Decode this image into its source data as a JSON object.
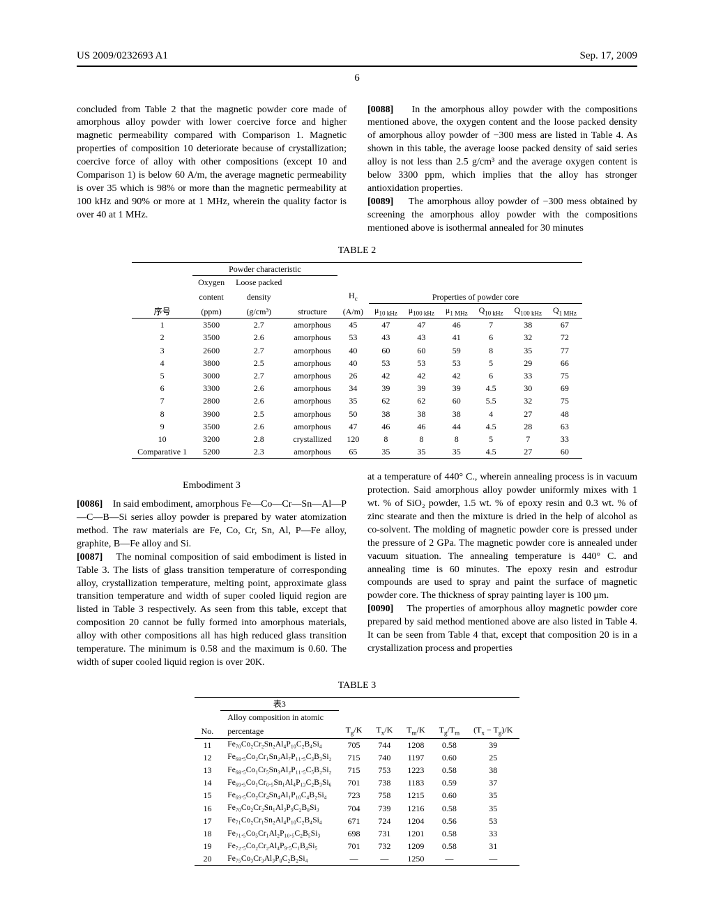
{
  "header": {
    "pub_no": "US 2009/0232693 A1",
    "date": "Sep. 17, 2009",
    "page": "6"
  },
  "top_left_para": "concluded from Table 2 that the magnetic powder core made of amorphous alloy powder with lower coercive force and higher magnetic permeability compared with Comparison 1. Magnetic properties of composition 10 deteriorate because of crystallization; coercive force of alloy with other compositions (except 10 and Comparison 1) is below 60 A/m, the average magnetic permeability is over 35 which is 98% or more than the magnetic permeability at 100 kHz and 90% or more at 1 MHz, wherein the quality factor is over 40 at 1 MHz.",
  "top_right_p1_label": "[0088]",
  "top_right_p1": "In the amorphous alloy powder with the compositions mentioned above, the oxygen content and the loose packed density of amorphous alloy powder of −300 mess are listed in Table 4. As shown in this table, the average loose packed density of said series alloy is not less than 2.5 g/cm³ and the average oxygen content is below 3300 ppm, which implies that the alloy has stronger antioxidation properties.",
  "top_right_p2_label": "[0089]",
  "top_right_p2": "The amorphous alloy powder of −300 mess obtained by screening the amorphous alloy powder with the compositions mentioned above is isothermal annealed for 30 minutes",
  "table2": {
    "caption": "TABLE 2",
    "group1": "Powder characteristic",
    "group2": "Properties of powder core",
    "col_no": "序号",
    "col_oxy1": "Oxygen",
    "col_oxy2": "content",
    "col_oxy3": "(ppm)",
    "col_lpd1": "Loose packed",
    "col_lpd2": "density",
    "col_lpd3": "(g/cm³)",
    "col_struct": "structure",
    "col_hc1": "H",
    "col_hc2": "(A/m)",
    "col_mu10": "μ",
    "col_mu100": "μ",
    "col_mu1m": "μ",
    "col_q10": "Q",
    "col_q100": "Q",
    "col_q1m": "Q",
    "sub_10k": "10 kHz",
    "sub_100k": "100 kHz",
    "sub_1m": "1 MHz",
    "sub_c": "c",
    "rows": [
      [
        "1",
        "3500",
        "2.7",
        "amorphous",
        "45",
        "47",
        "47",
        "46",
        "7",
        "38",
        "67"
      ],
      [
        "2",
        "3500",
        "2.6",
        "amorphous",
        "53",
        "43",
        "43",
        "41",
        "6",
        "32",
        "72"
      ],
      [
        "3",
        "2600",
        "2.7",
        "amorphous",
        "40",
        "60",
        "60",
        "59",
        "8",
        "35",
        "77"
      ],
      [
        "4",
        "3800",
        "2.5",
        "amorphous",
        "40",
        "53",
        "53",
        "53",
        "5",
        "29",
        "66"
      ],
      [
        "5",
        "3000",
        "2.7",
        "amorphous",
        "26",
        "42",
        "42",
        "42",
        "6",
        "33",
        "75"
      ],
      [
        "6",
        "3300",
        "2.6",
        "amorphous",
        "34",
        "39",
        "39",
        "39",
        "4.5",
        "30",
        "69"
      ],
      [
        "7",
        "2800",
        "2.6",
        "amorphous",
        "35",
        "62",
        "62",
        "60",
        "5.5",
        "32",
        "75"
      ],
      [
        "8",
        "3900",
        "2.5",
        "amorphous",
        "50",
        "38",
        "38",
        "38",
        "4",
        "27",
        "48"
      ],
      [
        "9",
        "3500",
        "2.6",
        "amorphous",
        "47",
        "46",
        "46",
        "44",
        "4.5",
        "28",
        "63"
      ],
      [
        "10",
        "3200",
        "2.8",
        "crystallized",
        "120",
        "8",
        "8",
        "8",
        "5",
        "7",
        "33"
      ],
      [
        "Comparative 1",
        "5200",
        "2.3",
        "amorphous",
        "65",
        "35",
        "35",
        "35",
        "4.5",
        "27",
        "60"
      ]
    ]
  },
  "emb3_title": "Embodiment 3",
  "mid_left_p1_label": "[0086]",
  "mid_left_p1": "In said embodiment, amorphous Fe—Co—Cr—Sn—Al—P—C—B—Si series alloy powder is prepared by water atomization method. The raw materials are Fe, Co, Cr, Sn, Al, P—Fe alloy, graphite, B—Fe alloy and Si.",
  "mid_left_p2_label": "[0087]",
  "mid_left_p2": "The nominal composition of said embodiment is listed in Table 3. The lists of glass transition temperature of corresponding alloy, crystallization temperature, melting point, approximate glass transition temperature and width of super cooled liquid region are listed in Table 3 respectively. As seen from this table, except that composition 20 cannot be fully formed into amorphous materials, alloy with other compositions all has high reduced glass transition temperature. The minimum is 0.58 and the maximum is 0.60. The width of super cooled liquid region is over 20K.",
  "mid_right_p1": "at a temperature of 440° C., wherein annealing process is in vacuum protection. Said amorphous alloy powder uniformly mixes with 1 wt. % of SiO₂ powder, 1.5 wt. % of epoxy resin and 0.3 wt. % of zinc stearate and then the mixture is dried in the help of alcohol as co-solvent. The molding of magnetic powder core is pressed under the pressure of 2 GPa. The magnetic powder core is annealed under vacuum situation. The annealing temperature is 440° C. and annealing time is 60 minutes. The epoxy resin and estrodur compounds are used to spray and paint the surface of magnetic powder core. The thickness of spray painting layer is 100 μm.",
  "mid_right_p2_label": "[0090]",
  "mid_right_p2": "The properties of amorphous alloy magnetic powder core prepared by said method mentioned above are also listed in Table 4. It can be seen from Table 4 that, except that composition 20 is in a crystallization process and properties",
  "table3": {
    "caption": "TABLE 3",
    "group": "表3",
    "col_no": "No.",
    "col_comp1": "Alloy composition in atomic",
    "col_comp2": "percentage",
    "col_tgk": "T_g/K",
    "col_txk": "T_x/K",
    "col_tmk": "T_m/K",
    "col_tgtm": "T_g/T_m",
    "col_dtx": "(T_x − T_g)/K",
    "rows": [
      [
        "11",
        "Fe₇₀Co₂Cr₂Sn₂Al₄P₁₀C₂B₄Si₄",
        "705",
        "744",
        "1208",
        "0.58",
        "39"
      ],
      [
        "12",
        "Fe₆₈.₅Co₂Cr₁Sn₂Al₇P₁₁.₅C₃B₃Si₂",
        "715",
        "740",
        "1197",
        "0.60",
        "25"
      ],
      [
        "13",
        "Fe₆₈.₅Co₁Cr₅Sn₃Al₂P₁₁.₅C₅B₂Si₂",
        "715",
        "753",
        "1223",
        "0.58",
        "38"
      ],
      [
        "14",
        "Fe₆₉.₅Co₁Cr₀.₅Sn₁Al₄P₁₃C₂B₃Si₆",
        "701",
        "738",
        "1183",
        "0.59",
        "37"
      ],
      [
        "15",
        "Fe₆₉.₅Co₂Cr₄Sn₄Al₁P₁₀C₄B₂Si₄",
        "723",
        "758",
        "1215",
        "0.60",
        "35"
      ],
      [
        "16",
        "Fe₇₀Co₂Cr₂Sn₁Al₃P₉C₂B₈Si₃",
        "704",
        "739",
        "1216",
        "0.58",
        "35"
      ],
      [
        "17",
        "Fe₇₁Co₂Cr₁Sn₂Al₄P₁₀C₂B₄Si₄",
        "671",
        "724",
        "1204",
        "0.56",
        "53"
      ],
      [
        "18",
        "Fe₇₁.₅Co₅Cr₁Al₂P₁₀.₅C₂B₅Si₃",
        "698",
        "731",
        "1201",
        "0.58",
        "33"
      ],
      [
        "19",
        "Fe₇₂.₅Co₂Cr₂Al₄P₉.₅C₁B₄Si₅",
        "701",
        "732",
        "1209",
        "0.58",
        "31"
      ],
      [
        "20",
        "Fe₇₅Co₃Cr₃Al₃P₈C₂B₂Si₄",
        "—",
        "—",
        "1250",
        "—",
        "—"
      ]
    ]
  }
}
